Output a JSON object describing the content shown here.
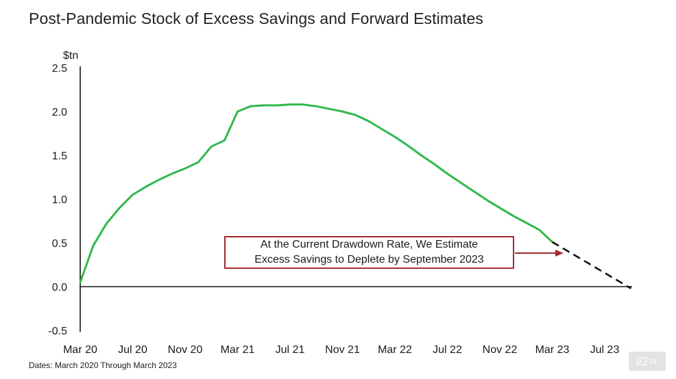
{
  "chart_data": {
    "type": "line",
    "title": "Post-Pandemic Stock of Excess Savings and Forward Estimates",
    "ylabel": "$tn",
    "xlabel": "",
    "ylim": [
      -0.5,
      2.5
    ],
    "yticks": [
      2.5,
      2.0,
      1.5,
      1.0,
      0.5,
      0.0,
      -0.5
    ],
    "ytick_labels": [
      "2.5",
      "2.0",
      "1.5",
      "1.0",
      "0.5",
      "0.0",
      "-0.5"
    ],
    "x_unit": "months since Mar 2020",
    "xlim": [
      0,
      43
    ],
    "xticks": [
      0,
      4,
      8,
      12,
      16,
      20,
      24,
      28,
      32,
      36,
      40
    ],
    "xtick_labels": [
      "Mar 20",
      "Jul 20",
      "Nov 20",
      "Mar 21",
      "Jul 21",
      "Nov 21",
      "Mar 22",
      "Jul 22",
      "Nov 22",
      "Mar 23",
      "Jul 23"
    ],
    "grid": false,
    "series": [
      {
        "name": "Excess savings",
        "style": "solid",
        "color": "#2fb84a",
        "x": [
          0,
          1,
          2,
          3,
          4,
          5,
          6,
          7,
          8,
          9,
          10,
          11,
          12,
          13,
          14,
          15,
          16,
          17,
          18,
          19,
          20,
          21,
          22,
          23,
          24,
          25,
          26,
          27,
          28,
          29,
          30,
          31,
          32,
          33,
          34,
          35,
          36
        ],
        "values": [
          0.05,
          0.47,
          0.72,
          0.9,
          1.05,
          1.14,
          1.22,
          1.29,
          1.35,
          1.42,
          1.6,
          1.67,
          2.0,
          2.06,
          2.07,
          2.07,
          2.08,
          2.08,
          2.06,
          2.03,
          2.0,
          1.96,
          1.89,
          1.8,
          1.71,
          1.61,
          1.5,
          1.4,
          1.29,
          1.19,
          1.09,
          0.99,
          0.9,
          0.81,
          0.73,
          0.65,
          0.51
        ]
      },
      {
        "name": "Forward estimate",
        "style": "dashed",
        "color": "#111111",
        "x": [
          36,
          42
        ],
        "values": [
          0.51,
          -0.02
        ]
      }
    ],
    "annotation": {
      "lines": [
        "At the Current Drawdown Rate, We Estimate",
        "Excess Savings to Deplete  by September 2023"
      ],
      "border_color": "#a42a2a"
    }
  },
  "footnote": "Dates: March 2020 Through March 2023",
  "page_badge": "01"
}
